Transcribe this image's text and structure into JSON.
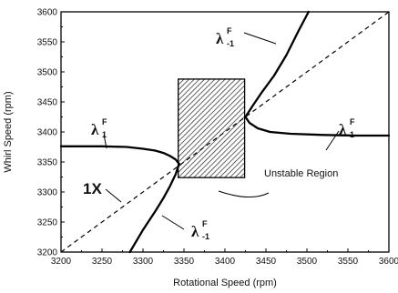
{
  "chart_data": {
    "type": "line",
    "xlabel": "Rotational Speed (rpm)",
    "ylabel": "Whirl Speed (rpm)",
    "xlim": [
      3200,
      3600
    ],
    "ylim": [
      3200,
      3600
    ],
    "xticks": [
      "3200",
      "3250",
      "3300",
      "3350",
      "3400",
      "3450",
      "3500",
      "3550",
      "3600"
    ],
    "yticks": [
      "3200",
      "3250",
      "3300",
      "3350",
      "3400",
      "3450",
      "3500",
      "3550",
      "3600"
    ],
    "series": [
      {
        "key": "fwd_low",
        "points": [
          [
            3200,
            3376
          ],
          [
            3250,
            3376
          ],
          [
            3280,
            3375
          ],
          [
            3300,
            3372
          ],
          [
            3315,
            3369
          ],
          [
            3325,
            3365
          ],
          [
            3333,
            3360
          ],
          [
            3340,
            3354
          ],
          [
            3344,
            3347
          ]
        ]
      },
      {
        "key": "bwd_low",
        "points": [
          [
            3284,
            3200
          ],
          [
            3300,
            3237
          ],
          [
            3315,
            3268
          ],
          [
            3325,
            3290
          ],
          [
            3333,
            3310
          ],
          [
            3340,
            3330
          ],
          [
            3344,
            3347
          ]
        ]
      },
      {
        "key": "bwd_high",
        "points": [
          [
            3425,
            3425
          ],
          [
            3434,
            3444
          ],
          [
            3445,
            3466
          ],
          [
            3460,
            3494
          ],
          [
            3475,
            3528
          ],
          [
            3490,
            3569
          ],
          [
            3502,
            3600
          ]
        ]
      },
      {
        "key": "fwd_high",
        "points": [
          [
            3425,
            3425
          ],
          [
            3430,
            3415
          ],
          [
            3440,
            3406
          ],
          [
            3455,
            3400
          ],
          [
            3480,
            3397
          ],
          [
            3520,
            3395
          ],
          [
            3560,
            3394
          ],
          [
            3600,
            3394
          ]
        ]
      }
    ],
    "reference_line": {
      "label": "1X",
      "from": [
        3200,
        3200
      ],
      "to": [
        3600,
        3600
      ]
    },
    "shaded_region": {
      "label": "Unstable Region",
      "x": [
        3343,
        3424
      ],
      "y": [
        3324,
        3488
      ]
    },
    "annotations": {
      "lambda": "λ",
      "fwd_sup": "F",
      "fwd_sub": "1",
      "bwd_sup": "F",
      "bwd_sub": "-1"
    }
  }
}
